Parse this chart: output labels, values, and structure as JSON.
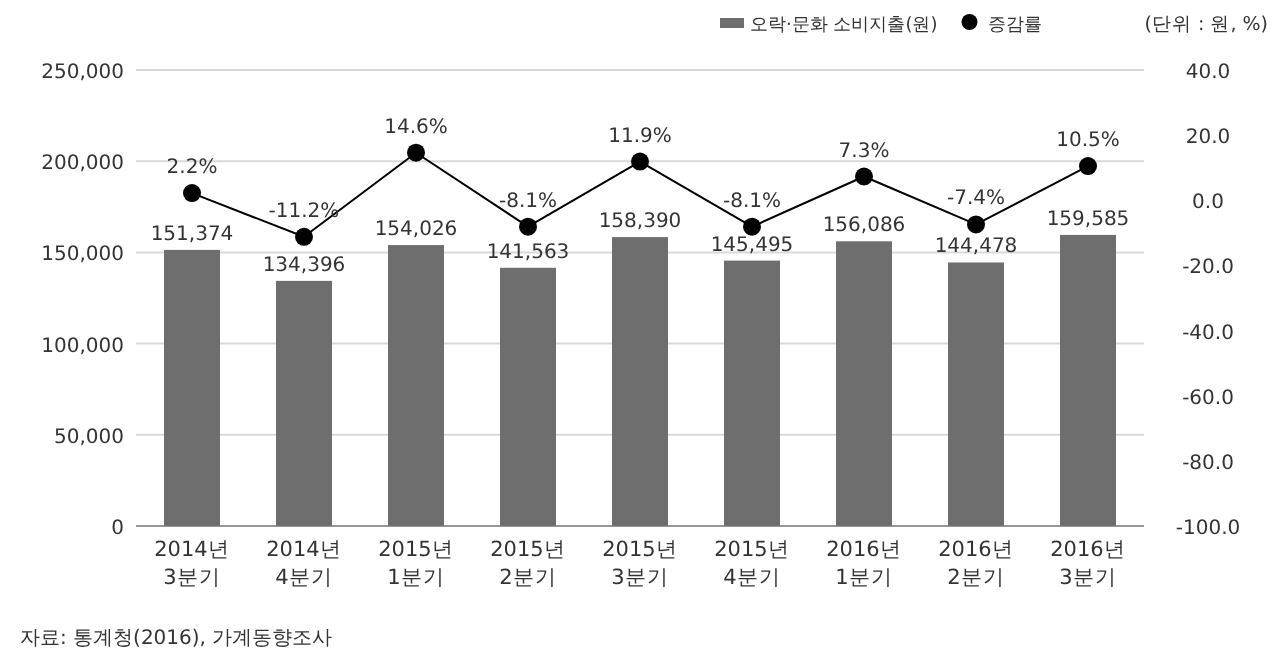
{
  "chart_data": {
    "type": "bar",
    "categories": [
      "2014년\n3분기",
      "2014년\n4분기",
      "2015년\n1분기",
      "2015년\n2분기",
      "2015년\n3분기",
      "2015년\n4분기",
      "2016년\n1분기",
      "2016년\n2분기",
      "2016년\n3분기"
    ],
    "series": [
      {
        "name": "오락·문화 소비지출(원)",
        "color": "#6e6e6e",
        "values": [
          151374,
          134396,
          154026,
          141563,
          158390,
          145495,
          156086,
          144478,
          159585
        ],
        "value_labels": [
          "151,374",
          "134,396",
          "154,026",
          "141,563",
          "158,390",
          "145,495",
          "156,086",
          "144,478",
          "159,585"
        ]
      },
      {
        "name": "증감률",
        "type": "line",
        "axis": "y2",
        "color": "#000000",
        "marker": "circle",
        "values": [
          2.2,
          -11.2,
          14.6,
          -8.1,
          11.9,
          -8.1,
          7.3,
          -7.4,
          10.5
        ],
        "value_labels": [
          "2.2%",
          "-11.2%",
          "14.6%",
          "-8.1%",
          "11.9%",
          "-8.1%",
          "7.3%",
          "-7.4%",
          "10.5%"
        ]
      }
    ],
    "ylim": [
      0,
      250000
    ],
    "yticks": [
      0,
      {
        "value": 50000,
        "label": "50,000"
      },
      {
        "value": 100000,
        "label": "100,000"
      },
      {
        "value": 150000,
        "label": "150,000"
      },
      {
        "value": 200000,
        "label": "200,000"
      },
      {
        "value": 250000,
        "label": "250,000"
      }
    ],
    "y2lim": [
      -100,
      40
    ],
    "y2ticks": [
      {
        "value": -100,
        "label": "-100.0"
      },
      {
        "value": -80,
        "label": "-80.0"
      },
      {
        "value": -60,
        "label": "-60.0"
      },
      {
        "value": -40,
        "label": "-40.0"
      },
      {
        "value": -20,
        "label": "-20.0"
      },
      {
        "value": 0,
        "label": "0.0"
      },
      {
        "value": 20,
        "label": "20.0"
      },
      {
        "value": 40,
        "label": "40.0"
      }
    ],
    "grid": "y",
    "legend": "top right",
    "annotations": [
      "(단위 : 원, %)",
      "자료: 통계청(2016), 가계동향조사"
    ]
  }
}
